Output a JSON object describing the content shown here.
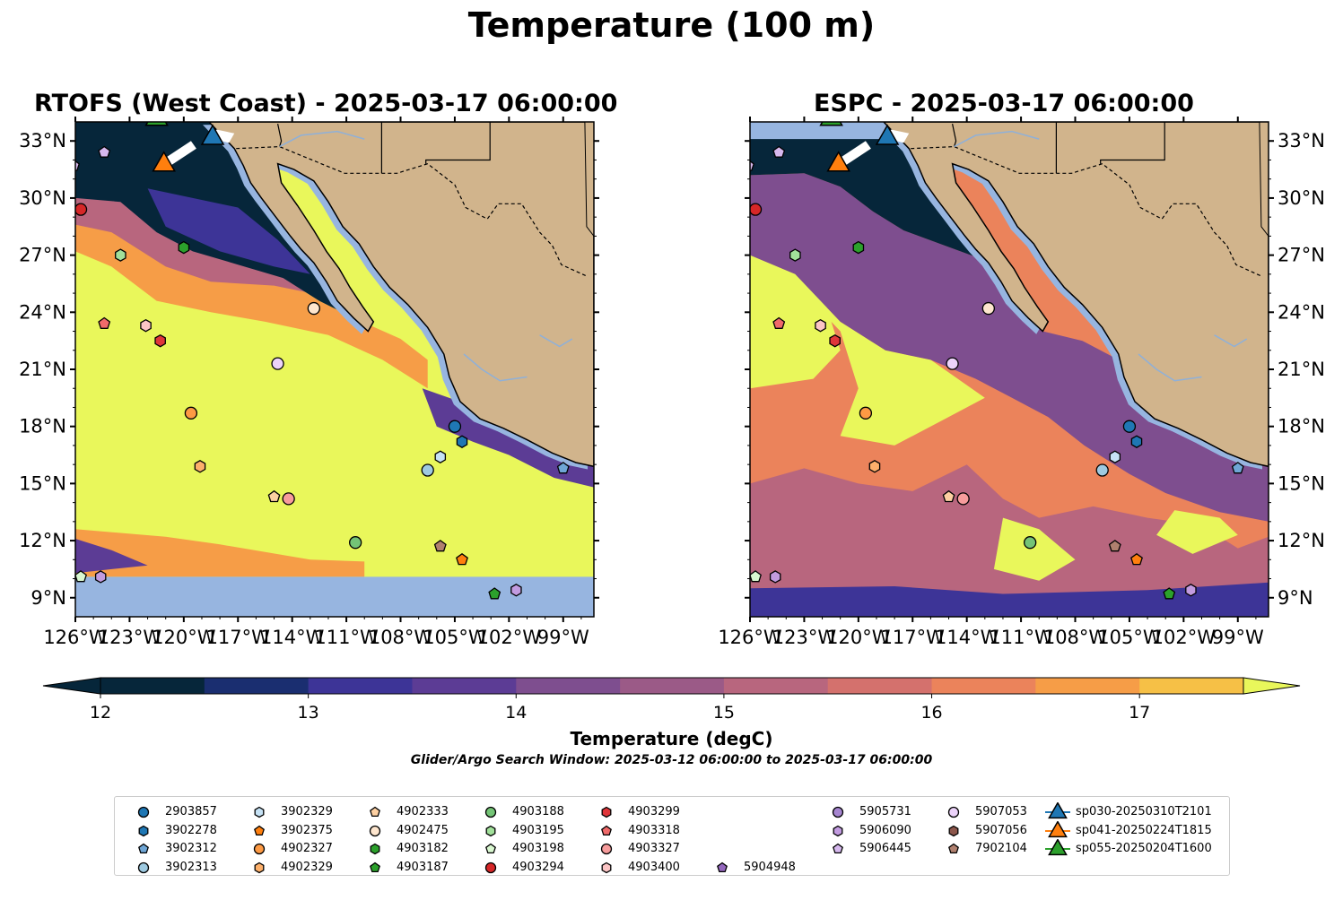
{
  "title": "Temperature (100 m)",
  "maps": [
    {
      "title": "RTOFS (West Coast) - 2025-03-17 06:00:00"
    },
    {
      "title": "ESPC - 2025-03-17 06:00:00"
    }
  ],
  "lon_ticks": [
    "126°W",
    "123°W",
    "120°W",
    "117°W",
    "114°W",
    "111°W",
    "108°W",
    "105°W",
    "102°W",
    "99°W"
  ],
  "lat_ticks": [
    "33°N",
    "30°N",
    "27°N",
    "24°N",
    "21°N",
    "18°N",
    "15°N",
    "12°N",
    "9°N"
  ],
  "colorbar": {
    "label": "Temperature (degC)",
    "ticks": [
      "12",
      "13",
      "14",
      "15",
      "16",
      "17"
    ],
    "colors": [
      "#06263a",
      "#1a2e70",
      "#3d3497",
      "#5c3c95",
      "#7e4e8f",
      "#9b5a87",
      "#b8667e",
      "#d4716d",
      "#eb835b",
      "#f69d47",
      "#f6c046",
      "#e9f75b"
    ]
  },
  "search_window": "Glider/Argo Search Window: 2025-03-12 06:00:00 to 2025-03-17 06:00:00",
  "colors": {
    "land": "#d1b48c",
    "shelf": "#97b5e0",
    "warm": "#e9f75b",
    "cold": "#06263a"
  },
  "legend": [
    {
      "label": "2903857",
      "marker": "circle",
      "color": "#1f77b4"
    },
    {
      "label": "3902278",
      "marker": "hexagon",
      "color": "#1f77b4"
    },
    {
      "label": "3902312",
      "marker": "pentagon",
      "color": "#6fa6d6"
    },
    {
      "label": "3902313",
      "marker": "circle",
      "color": "#9ecae1"
    },
    {
      "label": "3902329",
      "marker": "hexagon",
      "color": "#c6e2f5"
    },
    {
      "label": "3902375",
      "marker": "pentagon",
      "color": "#ff7f0e"
    },
    {
      "label": "4902327",
      "marker": "circle",
      "color": "#fd9a44"
    },
    {
      "label": "4902329",
      "marker": "hexagon",
      "color": "#fdb06b"
    },
    {
      "label": "4902333",
      "marker": "pentagon",
      "color": "#fdd0a2"
    },
    {
      "label": "4902475",
      "marker": "circle",
      "color": "#fee6ce"
    },
    {
      "label": "4903182",
      "marker": "hexagon",
      "color": "#2ca02c"
    },
    {
      "label": "4903187",
      "marker": "pentagon",
      "color": "#2ca02c"
    },
    {
      "label": "4903188",
      "marker": "circle",
      "color": "#74c476"
    },
    {
      "label": "4903195",
      "marker": "hexagon",
      "color": "#a1e09a"
    },
    {
      "label": "4903198",
      "marker": "pentagon",
      "color": "#d9f7d0"
    },
    {
      "label": "4903294",
      "marker": "circle",
      "color": "#d62728"
    },
    {
      "label": "4903299",
      "marker": "hexagon",
      "color": "#e0363a"
    },
    {
      "label": "4903318",
      "marker": "pentagon",
      "color": "#f06a6a"
    },
    {
      "label": "4903327",
      "marker": "circle",
      "color": "#f79c9c"
    },
    {
      "label": "4903400",
      "marker": "hexagon",
      "color": "#fcc5c5"
    },
    {
      "label": "5904948",
      "marker": "pentagon",
      "color": "#9467bd"
    },
    {
      "label": "5905731",
      "marker": "circle",
      "color": "#a685d0"
    },
    {
      "label": "5906090",
      "marker": "hexagon",
      "color": "#c29be0"
    },
    {
      "label": "5906445",
      "marker": "pentagon",
      "color": "#d6b8ee"
    },
    {
      "label": "5907053",
      "marker": "circle",
      "color": "#ecd3fa"
    },
    {
      "label": "5907056",
      "marker": "hexagon",
      "color": "#8c564b"
    },
    {
      "label": "7902104",
      "marker": "pentagon",
      "color": "#b0806f"
    },
    {
      "label": "sp030-20250310T2101",
      "marker": "triangle",
      "color": "#1f77b4"
    },
    {
      "label": "sp041-20250224T1815",
      "marker": "triangle",
      "color": "#ff7f0e"
    },
    {
      "label": "sp055-20250204T1600",
      "marker": "triangle",
      "color": "#2ca02c"
    }
  ],
  "observations": [
    {
      "id": "2903857",
      "lon": -105.0,
      "lat": 18.0
    },
    {
      "id": "3902278",
      "lon": -104.6,
      "lat": 17.2
    },
    {
      "id": "3902312",
      "lon": -99.0,
      "lat": 15.8
    },
    {
      "id": "3902313",
      "lon": -106.5,
      "lat": 15.7
    },
    {
      "id": "3902329",
      "lon": -105.8,
      "lat": 16.4
    },
    {
      "id": "3902375",
      "lon": -104.6,
      "lat": 11.0
    },
    {
      "id": "4902327",
      "lon": -119.6,
      "lat": 18.7
    },
    {
      "id": "4902329",
      "lon": -119.1,
      "lat": 15.9
    },
    {
      "id": "4902333",
      "lon": -115.0,
      "lat": 14.3
    },
    {
      "id": "4902475",
      "lon": -112.8,
      "lat": 24.2
    },
    {
      "id": "4903182",
      "lon": -120.0,
      "lat": 27.4
    },
    {
      "id": "4903187",
      "lon": -102.8,
      "lat": 9.2
    },
    {
      "id": "4903188",
      "lon": -110.5,
      "lat": 11.9
    },
    {
      "id": "4903195",
      "lon": -123.5,
      "lat": 27.0
    },
    {
      "id": "4903198",
      "lon": -125.7,
      "lat": 10.1
    },
    {
      "id": "4903294",
      "lon": -125.7,
      "lat": 29.4
    },
    {
      "id": "4903299",
      "lon": -121.3,
      "lat": 22.5
    },
    {
      "id": "4903318",
      "lon": -124.4,
      "lat": 23.4
    },
    {
      "id": "4903327",
      "lon": -114.2,
      "lat": 14.2
    },
    {
      "id": "4903400",
      "lon": -122.1,
      "lat": 23.3
    },
    {
      "id": "5906445",
      "lon": -124.4,
      "lat": 32.4
    },
    {
      "id": "5906090",
      "lon": -101.6,
      "lat": 9.4
    },
    {
      "id": "5906090b",
      "lon": -124.6,
      "lat": 10.1
    },
    {
      "id": "5906445b",
      "lon": -126.1,
      "lat": 31.7
    },
    {
      "id": "5907053",
      "lon": -114.8,
      "lat": 21.3
    },
    {
      "id": "7902104",
      "lon": -105.8,
      "lat": 11.7
    }
  ],
  "gliders": [
    {
      "id": "sp030-20250310T2101",
      "lon": -118.4,
      "lat": 33.2,
      "color": "#1f77b4"
    },
    {
      "id": "sp041-20250224T1815",
      "lon": -121.1,
      "lat": 31.8,
      "color": "#ff7f0e"
    },
    {
      "id": "sp055-20250204T1600",
      "lon": -121.5,
      "lat": 34.2,
      "color": "#2ca02c"
    }
  ]
}
